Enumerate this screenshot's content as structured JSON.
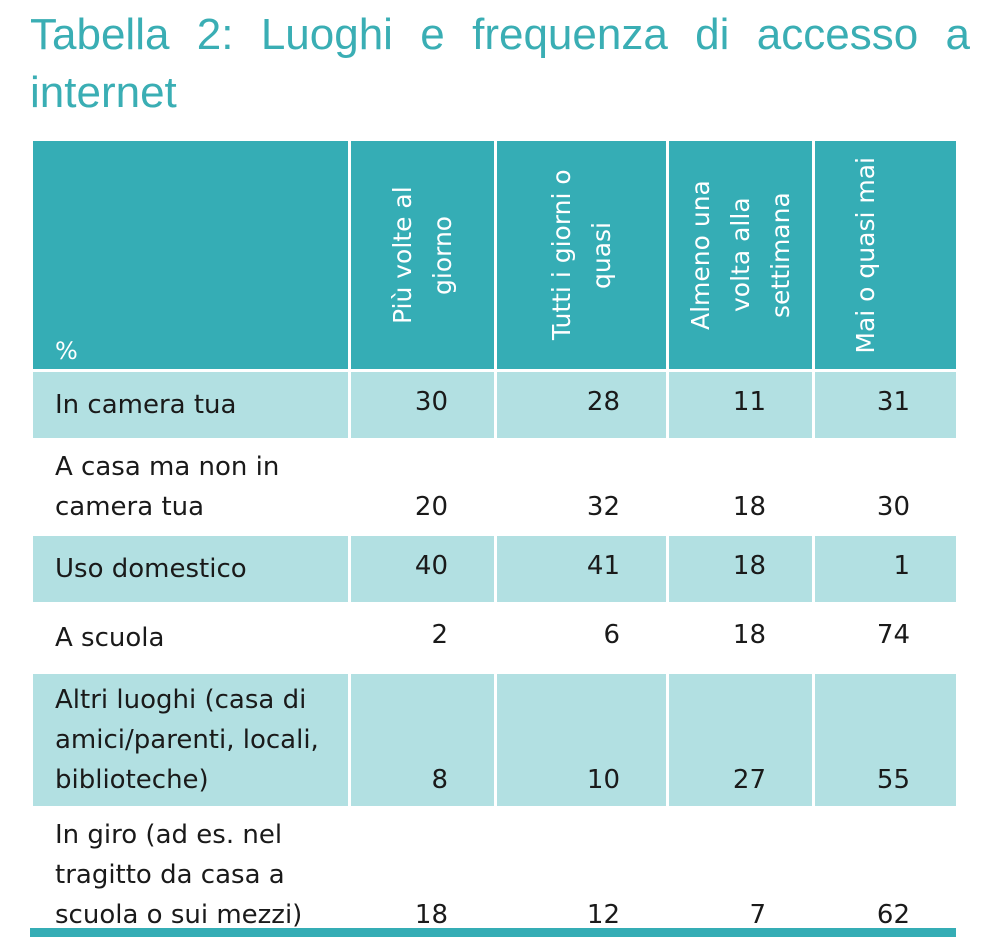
{
  "title": "Tabella 2: Luoghi e frequenza di accesso a internet",
  "table": {
    "corner_label": "%",
    "columns": [
      "Più volte al giorno",
      "Tutti i giorni o quasi",
      "Almeno una volta alla settimana",
      "Mai o quasi mai"
    ],
    "rows": [
      {
        "label": "In camera tua",
        "values": [
          "30",
          "28",
          "11",
          "31"
        ]
      },
      {
        "label": "A casa ma non in camera tua",
        "values": [
          "20",
          "32",
          "18",
          "30"
        ]
      },
      {
        "label": "Uso domestico",
        "values": [
          "40",
          "41",
          "18",
          "1"
        ]
      },
      {
        "label": "A scuola",
        "values": [
          "2",
          "6",
          "18",
          "74"
        ]
      },
      {
        "label": "Altri luoghi (casa di amici/parenti, locali, biblioteche)",
        "values": [
          "8",
          "10",
          "27",
          "55"
        ]
      },
      {
        "label": "In giro (ad es. nel tragitto da casa a scuola o sui mezzi)",
        "values": [
          "18",
          "12",
          "7",
          "62"
        ]
      }
    ]
  },
  "colors": {
    "header": "#35adb5",
    "stripe": "#b2e0e2",
    "title": "#3aaeb4"
  }
}
